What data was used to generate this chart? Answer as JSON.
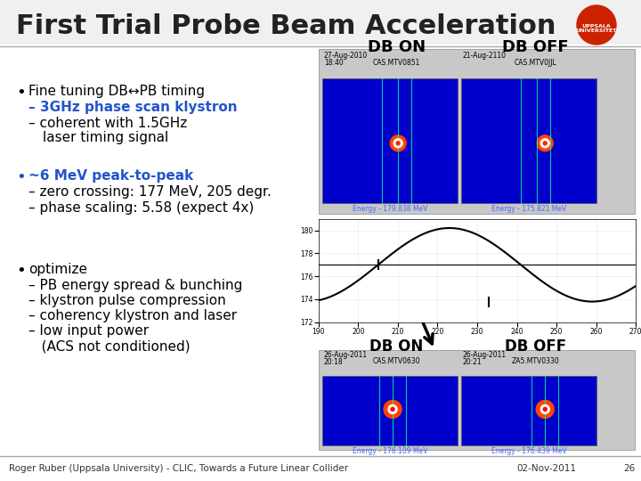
{
  "title": "First Trial Probe Beam Acceleration",
  "bg_color": "#f0f0f0",
  "title_color": "#222222",
  "title_fontsize": 22,
  "footer_left": "Roger Ruber (Uppsala University) - CLIC, Towards a Future Linear Collider",
  "footer_right": "02-Nov-2011",
  "footer_page": "26",
  "bullet1_main": "Fine tuning DB↔PB timing",
  "bullet1_sub1_colored": "– 3GHz phase scan klystron",
  "bullet1_sub1_color": "#2255cc",
  "bullet2_main_color": "#2255cc",
  "bullet2_sub1": "– zero crossing: 177 MeV, 205 degr.",
  "bullet2_sub2": "– phase scaling: 5.58 (expect 4x)",
  "bullet3_subs": [
    "– PB energy spread & bunching",
    "– klystron pulse compression",
    "– coherency klystron and laser",
    "– low input power",
    "   (ACS not conditioned)"
  ],
  "footer_left_text": "Roger Ruber (Uppsala University) - CLIC, Towards a Future Linear Collider",
  "footer_right_text": "02-Nov-2011",
  "footer_page_text": "26",
  "panel_bg": "#c8c8c8",
  "img_bg": "#0000cc",
  "top_left_date": "27-Aug-2010",
  "top_left_time": "18:40",
  "top_left_label": "DB ON",
  "top_left_cam": "CAS.MTV0851",
  "top_left_energy": "Energy - 179.838 MeV",
  "top_right_date": "21-Aug-2110",
  "top_right_label": "DB OFF",
  "top_right_cam": "CAS.MTV0JJL",
  "top_right_energy": "Energy - 175.821 MeV",
  "bot_left_date": "26-Aug-2011",
  "bot_left_time": "20:18",
  "bot_left_label": "DB ON",
  "bot_left_cam": "CAS.MTV0630",
  "bot_left_energy": "Energy - 176.109 MeV",
  "bot_right_date": "26-Aug-2011",
  "bot_right_time": "20:21",
  "bot_right_label": "DB OFF",
  "bot_right_cam": "ZA5.MTV0330",
  "bot_right_energy": "Energy - 176.439 MeV"
}
